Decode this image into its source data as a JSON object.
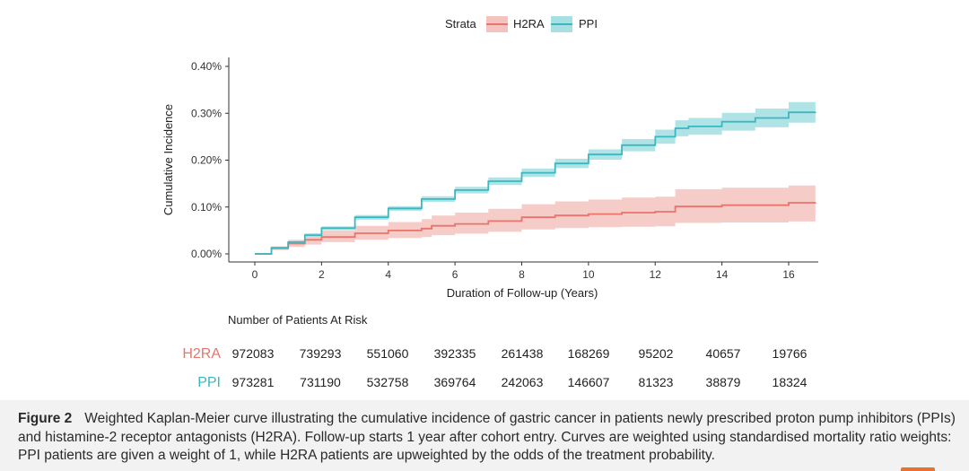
{
  "colors": {
    "h2ra": "#e8746b",
    "ppi": "#3bb8bf",
    "h2ra_band": "#f4c3c0",
    "ppi_band": "#a7e0e3"
  },
  "chart_data": {
    "type": "line",
    "title": "",
    "xlabel": "Duration of Follow-up (Years)",
    "ylabel": "Cumulative Incidence",
    "xlim": [
      -0.7,
      16.9
    ],
    "ylim": [
      0.0,
      0.0042
    ],
    "x_ticks": [
      0,
      2,
      4,
      6,
      8,
      10,
      12,
      14,
      16
    ],
    "x_tick_labels": [
      "0",
      "2",
      "4",
      "6",
      "8",
      "10",
      "12",
      "14",
      "16"
    ],
    "y_ticks": [
      0.0,
      0.001,
      0.002,
      0.003,
      0.004
    ],
    "y_tick_labels": [
      "0.00%",
      "0.10%",
      "0.20%",
      "0.30%",
      "0.40%"
    ],
    "legend_title": "Strata",
    "legend_position": "top-center",
    "series": [
      {
        "name": "H2RA",
        "x": [
          0,
          0.5,
          1,
          1.5,
          2,
          3,
          4,
          5,
          5.3,
          6,
          7,
          8,
          9,
          10,
          11,
          12,
          12.6,
          14,
          16,
          16.8
        ],
        "values": [
          0,
          0.00012,
          0.00022,
          0.0003,
          0.00036,
          0.00044,
          0.0005,
          0.00054,
          0.0006,
          0.00064,
          0.0007,
          0.00078,
          0.00082,
          0.00085,
          0.00088,
          0.0009,
          0.00101,
          0.00104,
          0.00109,
          0.0011
        ],
        "lower": [
          0,
          8e-05,
          0.00015,
          0.0002,
          0.00025,
          0.0003,
          0.00034,
          0.00036,
          0.0004,
          0.00043,
          0.00047,
          0.00052,
          0.00055,
          0.00057,
          0.00058,
          0.00059,
          0.00066,
          0.00067,
          0.00069,
          0.0007
        ],
        "upper": [
          0,
          0.00016,
          0.0003,
          0.00041,
          0.0005,
          0.0006,
          0.00068,
          0.00074,
          0.00082,
          0.00088,
          0.00096,
          0.00106,
          0.00112,
          0.00116,
          0.0012,
          0.00122,
          0.00138,
          0.00141,
          0.00146,
          0.00148
        ]
      },
      {
        "name": "PPI",
        "x": [
          0,
          0.5,
          1,
          1.5,
          2,
          3,
          4,
          5,
          6,
          7,
          8,
          9,
          10,
          11,
          12,
          12.6,
          13,
          14,
          15,
          16,
          16.8
        ],
        "values": [
          0,
          0.00013,
          0.00025,
          0.0004,
          0.00055,
          0.00078,
          0.00097,
          0.00117,
          0.00136,
          0.00155,
          0.00173,
          0.00193,
          0.00212,
          0.00232,
          0.0025,
          0.00268,
          0.00272,
          0.00282,
          0.0029,
          0.00302,
          0.00303
        ],
        "lower": [
          0,
          0.00011,
          0.00022,
          0.00036,
          0.00051,
          0.00073,
          0.00092,
          0.00111,
          0.00129,
          0.00147,
          0.00164,
          0.00183,
          0.00201,
          0.00219,
          0.00235,
          0.00251,
          0.00254,
          0.00263,
          0.0027,
          0.0028,
          0.0028
        ],
        "upper": [
          0,
          0.00015,
          0.00028,
          0.00044,
          0.00059,
          0.00083,
          0.00102,
          0.00123,
          0.00143,
          0.00163,
          0.00182,
          0.00203,
          0.00223,
          0.00245,
          0.00265,
          0.00285,
          0.0029,
          0.00301,
          0.0031,
          0.00324,
          0.00326
        ]
      }
    ]
  },
  "risk_table": {
    "title": "Number of Patients At Risk",
    "rows": [
      {
        "label": "H2RA",
        "values": [
          "972083",
          "739293",
          "551060",
          "392335",
          "261438",
          "168269",
          "95202",
          "40657",
          "19766"
        ]
      },
      {
        "label": "PPI",
        "values": [
          "973281",
          "731190",
          "532758",
          "369764",
          "242063",
          "146607",
          "81323",
          "38879",
          "18324"
        ]
      }
    ]
  },
  "caption": {
    "label": "Figure 2",
    "text": "Weighted Kaplan-Meier curve illustrating the cumulative incidence of gastric cancer in patients newly prescribed proton pump inhibitors (PPIs) and histamine-2 receptor antagonists (H2RA). Follow-up starts 1 year after cohort entry. Curves are weighted using standardised mortality ratio weights: PPI patients are given a weight of 1, while H2RA patients are upweighted by the odds of the treatment probability."
  }
}
